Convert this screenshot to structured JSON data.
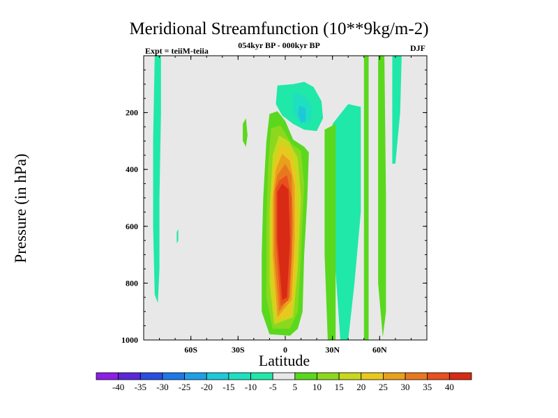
{
  "chart_data": {
    "type": "heatmap",
    "title": "Meridional Streamfunction (10**9kg/m-2)",
    "subtitle_left": "Expt = teiiM-teiia",
    "subtitle_center": "054kyr BP - 000kyr BP",
    "subtitle_right": "DJF",
    "xlabel": "Latitude",
    "ylabel": "Pressure (in hPa)",
    "xlim": [
      -90,
      90
    ],
    "ylim": [
      1000,
      0
    ],
    "x_ticks": [
      {
        "value": -60,
        "label": "60S"
      },
      {
        "value": -30,
        "label": "30S"
      },
      {
        "value": 0,
        "label": "0"
      },
      {
        "value": 30,
        "label": "30N"
      },
      {
        "value": 60,
        "label": "60N"
      }
    ],
    "y_ticks": [
      {
        "value": 200,
        "label": "200"
      },
      {
        "value": 400,
        "label": "400"
      },
      {
        "value": 600,
        "label": "600"
      },
      {
        "value": 800,
        "label": "800"
      },
      {
        "value": 1000,
        "label": "1000"
      }
    ],
    "colorbar": {
      "labels": [
        "-40",
        "-35",
        "-30",
        "-25",
        "-20",
        "-15",
        "-10",
        "-5",
        "5",
        "10",
        "15",
        "20",
        "25",
        "30",
        "35",
        "40"
      ],
      "colors": [
        "#8c1ee6",
        "#5a28d8",
        "#2a4ee0",
        "#1e78e8",
        "#1ea0e8",
        "#1ec8d8",
        "#1ee0c0",
        "#20e8a8",
        "#e8e8e8",
        "#5ad81e",
        "#8cd81e",
        "#c8d81e",
        "#e8c81e",
        "#e8a01e",
        "#e8781e",
        "#e8501e",
        "#d82a14"
      ]
    },
    "regions": [
      {
        "name": "main-positive-cell",
        "level": "5",
        "points": [
          [
            -10,
            980
          ],
          [
            -15,
            900
          ],
          [
            -15,
            700
          ],
          [
            -14,
            500
          ],
          [
            -12,
            300
          ],
          [
            -10,
            205
          ],
          [
            -5,
            195
          ],
          [
            0,
            230
          ],
          [
            5,
            295
          ],
          [
            12,
            320
          ],
          [
            15,
            340
          ],
          [
            14,
            500
          ],
          [
            12,
            700
          ],
          [
            11,
            900
          ],
          [
            8,
            960
          ],
          [
            3,
            985
          ]
        ]
      },
      {
        "name": "main-positive-cell",
        "level": "10",
        "points": [
          [
            -8,
            960
          ],
          [
            -12,
            850
          ],
          [
            -12,
            600
          ],
          [
            -11,
            400
          ],
          [
            -9,
            255
          ],
          [
            -3,
            245
          ],
          [
            4,
            310
          ],
          [
            10,
            335
          ],
          [
            12,
            450
          ],
          [
            10,
            700
          ],
          [
            8,
            900
          ],
          [
            3,
            960
          ]
        ]
      },
      {
        "name": "main-positive-cell",
        "level": "15",
        "points": [
          [
            -7,
            945
          ],
          [
            -10,
            800
          ],
          [
            -10,
            550
          ],
          [
            -8,
            350
          ],
          [
            -4,
            280
          ],
          [
            2,
            300
          ],
          [
            8,
            360
          ],
          [
            10,
            500
          ],
          [
            8,
            750
          ],
          [
            5,
            920
          ]
        ]
      },
      {
        "name": "main-positive-cell",
        "level": "20",
        "points": [
          [
            -6,
            930
          ],
          [
            -9,
            750
          ],
          [
            -9,
            500
          ],
          [
            -7,
            380
          ],
          [
            -3,
            310
          ],
          [
            3,
            330
          ],
          [
            7,
            420
          ],
          [
            8,
            580
          ],
          [
            6,
            820
          ],
          [
            3,
            920
          ]
        ]
      },
      {
        "name": "main-positive-cell",
        "level": "25",
        "points": [
          [
            -5,
            920
          ],
          [
            -8,
            700
          ],
          [
            -8,
            500
          ],
          [
            -6,
            400
          ],
          [
            -2,
            345
          ],
          [
            3,
            370
          ],
          [
            6,
            460
          ],
          [
            6,
            650
          ],
          [
            4,
            860
          ]
        ]
      },
      {
        "name": "main-positive-cell",
        "level": "30",
        "points": [
          [
            -4,
            900
          ],
          [
            -7,
            700
          ],
          [
            -7,
            480
          ],
          [
            -5,
            420
          ],
          [
            0,
            380
          ],
          [
            4,
            420
          ],
          [
            5,
            600
          ],
          [
            3,
            850
          ]
        ]
      },
      {
        "name": "main-positive-cell",
        "level": "35",
        "points": [
          [
            -3,
            880
          ],
          [
            -6,
            650
          ],
          [
            -6,
            470
          ],
          [
            -4,
            440
          ],
          [
            1,
            420
          ],
          [
            4,
            500
          ],
          [
            4,
            700
          ],
          [
            2,
            860
          ]
        ]
      },
      {
        "name": "main-positive-cell",
        "level": "40",
        "points": [
          [
            -2,
            860
          ],
          [
            -5,
            650
          ],
          [
            -5,
            480
          ],
          [
            -2,
            450
          ],
          [
            2,
            470
          ],
          [
            3,
            650
          ],
          [
            1,
            850
          ]
        ]
      },
      {
        "name": "southern-negative-band",
        "level": "-5",
        "points": [
          [
            -83,
            0
          ],
          [
            -79,
            0
          ],
          [
            -79,
            200
          ],
          [
            -80,
            500
          ],
          [
            -80,
            750
          ],
          [
            -81,
            870
          ],
          [
            -83,
            840
          ],
          [
            -84,
            600
          ],
          [
            -84,
            300
          ]
        ]
      },
      {
        "name": "upper-negative-cell",
        "level": "-5",
        "points": [
          [
            -5,
            105
          ],
          [
            5,
            100
          ],
          [
            12,
            92
          ],
          [
            18,
            110
          ],
          [
            23,
            160
          ],
          [
            24,
            220
          ],
          [
            20,
            265
          ],
          [
            12,
            260
          ],
          [
            5,
            240
          ],
          [
            -2,
            210
          ],
          [
            -6,
            170
          ]
        ]
      },
      {
        "name": "upper-negative-cell",
        "level": "-10",
        "points": [
          [
            5,
            130
          ],
          [
            12,
            140
          ],
          [
            17,
            180
          ],
          [
            16,
            235
          ],
          [
            10,
            240
          ],
          [
            5,
            200
          ]
        ]
      },
      {
        "name": "upper-negative-cell",
        "level": "-15",
        "points": [
          [
            9,
            175
          ],
          [
            13,
            185
          ],
          [
            13,
            230
          ],
          [
            10,
            235
          ],
          [
            8,
            205
          ]
        ]
      },
      {
        "name": "northern-negative-band",
        "level": "-5",
        "points": [
          [
            30,
            240
          ],
          [
            40,
            170
          ],
          [
            48,
            180
          ],
          [
            48,
            550
          ],
          [
            44,
            800
          ],
          [
            40,
            1000
          ],
          [
            35,
            1000
          ],
          [
            30,
            600
          ]
        ]
      },
      {
        "name": "northern-positive-band",
        "level": "5",
        "points": [
          [
            25,
            260
          ],
          [
            32,
            240
          ],
          [
            32,
            1000
          ],
          [
            27,
            1000
          ],
          [
            25,
            700
          ]
        ]
      },
      {
        "name": "northern-positive-strip",
        "level": "5",
        "points": [
          [
            50,
            0
          ],
          [
            53,
            0
          ],
          [
            53,
            1000
          ],
          [
            50,
            1000
          ]
        ]
      },
      {
        "name": "northern-positive-strip",
        "level": "5",
        "points": [
          [
            59,
            0
          ],
          [
            63,
            0
          ],
          [
            64,
            500
          ],
          [
            64,
            900
          ],
          [
            62,
            990
          ],
          [
            59,
            800
          ]
        ]
      },
      {
        "name": "northern-negative-strip",
        "level": "-5",
        "points": [
          [
            68,
            0
          ],
          [
            74,
            0
          ],
          [
            73,
            200
          ],
          [
            70,
            380
          ],
          [
            68,
            380
          ]
        ]
      },
      {
        "name": "small-positive-blob",
        "level": "5",
        "points": [
          [
            -27,
            240
          ],
          [
            -25,
            220
          ],
          [
            -24,
            280
          ],
          [
            -25,
            320
          ],
          [
            -27,
            300
          ]
        ]
      },
      {
        "name": "small-negative-blob",
        "level": "-5",
        "points": [
          [
            -69,
            620
          ],
          [
            -68,
            610
          ],
          [
            -68,
            650
          ],
          [
            -69,
            660
          ]
        ]
      }
    ]
  }
}
